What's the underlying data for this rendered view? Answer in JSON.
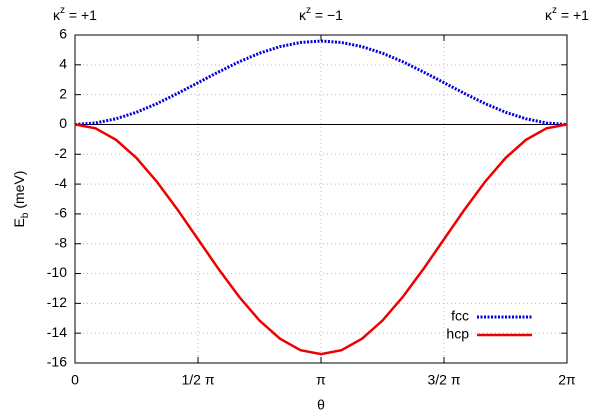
{
  "chart_data": {
    "type": "line",
    "xlabel": "θ",
    "ylabel": {
      "base": "E",
      "sub": "b",
      "rest": " (meV)"
    },
    "annotations": [
      {
        "x": 0,
        "base": "κ",
        "sup": "z",
        "rest": " = +1"
      },
      {
        "x": 3.1416,
        "base": "κ",
        "sup": "z",
        "rest": " = −1"
      },
      {
        "x": 6.2832,
        "base": "κ",
        "sup": "z",
        "rest": " = +1"
      }
    ],
    "x": [
      0,
      0.2618,
      0.5236,
      0.7854,
      1.0472,
      1.309,
      1.5708,
      1.8326,
      2.0944,
      2.3562,
      2.618,
      2.8798,
      3.1416,
      3.4034,
      3.6652,
      3.927,
      4.1888,
      4.4506,
      4.7124,
      4.9742,
      5.236,
      5.4978,
      5.7596,
      6.0214,
      6.2832
    ],
    "series": [
      {
        "name": "fcc",
        "color": "#0000dd",
        "dash": true,
        "values": [
          0,
          0.1,
          0.38,
          0.82,
          1.4,
          2.08,
          2.8,
          3.52,
          4.2,
          4.78,
          5.22,
          5.5,
          5.6,
          5.5,
          5.22,
          4.78,
          4.2,
          3.52,
          2.8,
          2.08,
          1.4,
          0.82,
          0.38,
          0.1,
          0
        ]
      },
      {
        "name": "hcp",
        "color": "#ee0000",
        "dash": false,
        "values": [
          0,
          -0.26,
          -1.03,
          -2.25,
          -3.85,
          -5.71,
          -7.7,
          -9.69,
          -11.55,
          -13.15,
          -14.37,
          -15.14,
          -15.4,
          -15.14,
          -14.37,
          -13.15,
          -11.55,
          -9.69,
          -7.7,
          -5.71,
          -3.85,
          -2.25,
          -1.03,
          -0.26,
          0
        ]
      }
    ],
    "xlim": [
      0,
      6.2832
    ],
    "xticks": [
      0,
      {
        "value": 1.5708,
        "label": "1/2 π"
      },
      {
        "value": 3.1416,
        "label": "π"
      },
      {
        "value": 4.7124,
        "label": "3/2 π"
      },
      {
        "value": 6.2832,
        "label": "2π"
      }
    ],
    "ylim": [
      -16,
      6
    ],
    "yticks": [
      -16,
      -14,
      -12,
      -10,
      -8,
      -6,
      -4,
      -2,
      0,
      2,
      4,
      6
    ],
    "grid": true,
    "zero_line": true,
    "legend": "lower right"
  }
}
